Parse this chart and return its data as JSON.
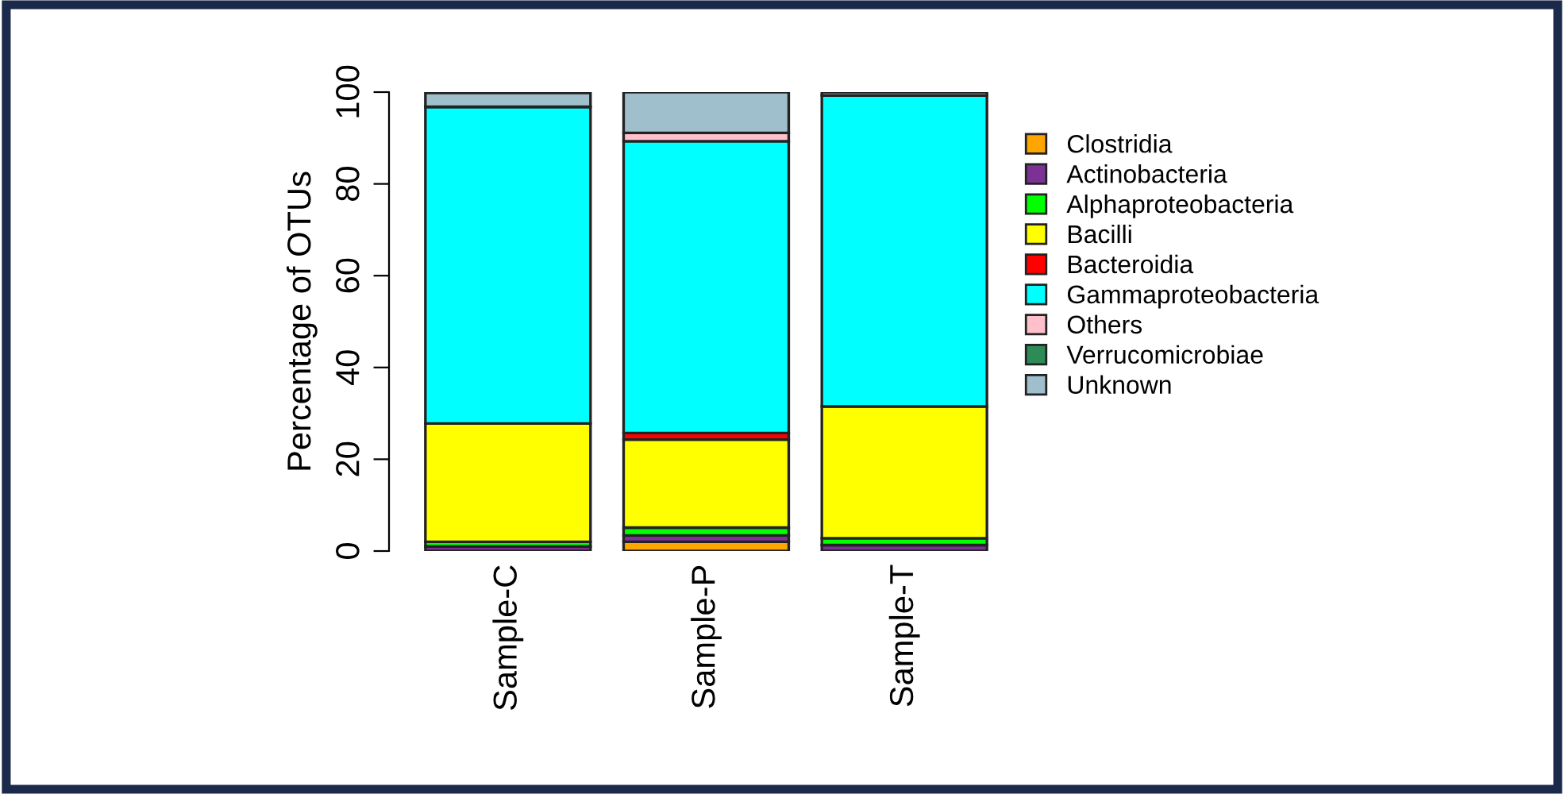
{
  "chart_data": {
    "type": "bar",
    "stacked": true,
    "ylabel": "Percentage of OTUs",
    "categories": [
      "Sample-C",
      "Sample-P",
      "Sample-T"
    ],
    "ylim": [
      0,
      100
    ],
    "yticks": [
      0,
      20,
      40,
      60,
      80,
      100
    ],
    "grid": false,
    "legend": "right",
    "series": [
      {
        "name": "Clostridia",
        "color": "#ffa500",
        "values": [
          0,
          2,
          0
        ]
      },
      {
        "name": "Actinobacteria",
        "color": "#7b3294",
        "values": [
          1,
          1.4,
          1.3
        ]
      },
      {
        "name": "Alphaproteobacteria",
        "color": "#00ff00",
        "values": [
          1,
          1.7,
          1.5
        ]
      },
      {
        "name": "Bacilli",
        "color": "#ffff00",
        "values": [
          25.8,
          19.2,
          28.7
        ]
      },
      {
        "name": "Bacteroidia",
        "color": "#ff0000",
        "values": [
          0,
          1.4,
          0
        ]
      },
      {
        "name": "Gammaproteobacteria",
        "color": "#00ffff",
        "values": [
          69,
          63.6,
          67.8
        ]
      },
      {
        "name": "Others",
        "color": "#ffc0cb",
        "values": [
          0,
          1.8,
          0
        ]
      },
      {
        "name": "Verrucomicrobiae",
        "color": "#2e8b57",
        "values": [
          0,
          0,
          0
        ]
      },
      {
        "name": "Unknown",
        "color": "#9fbfcc",
        "values": [
          3,
          8.9,
          0.7
        ]
      }
    ]
  }
}
